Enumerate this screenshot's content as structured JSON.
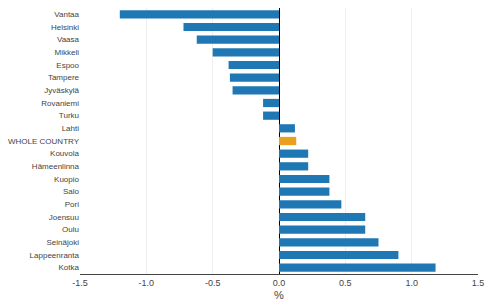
{
  "chart_data": {
    "type": "bar",
    "orientation": "horizontal",
    "categories": [
      "Vantaa",
      "Helsinki",
      "Vaasa",
      "Mikkeli",
      "Espoo",
      "Tampere",
      "Jyväskylä",
      "Rovaniemi",
      "Turku",
      "Lahti",
      "WHOLE COUNTRY",
      "Kouvola",
      "Hämeenlinna",
      "Kuopio",
      "Salo",
      "Pori",
      "Joensuu",
      "Oulu",
      "Seinäjoki",
      "Lappeenranta",
      "Kotka"
    ],
    "values": [
      -1.2,
      -0.72,
      -0.62,
      -0.5,
      -0.38,
      -0.37,
      -0.35,
      -0.12,
      -0.12,
      0.12,
      0.13,
      0.22,
      0.22,
      0.38,
      0.38,
      0.47,
      0.65,
      0.65,
      0.75,
      0.9,
      1.18
    ],
    "colors": [
      "#1f77b4",
      "#1f77b4",
      "#1f77b4",
      "#1f77b4",
      "#1f77b4",
      "#1f77b4",
      "#1f77b4",
      "#1f77b4",
      "#1f77b4",
      "#1f77b4",
      "#e8a020",
      "#1f77b4",
      "#1f77b4",
      "#1f77b4",
      "#1f77b4",
      "#1f77b4",
      "#1f77b4",
      "#1f77b4",
      "#1f77b4",
      "#1f77b4",
      "#1f77b4"
    ],
    "xlabel": "%",
    "xlim": [
      -1.5,
      1.5
    ],
    "xticks": [
      -1.5,
      {
        "value": -1.0,
        "label": "-1.0"
      },
      -0.5,
      {
        "value": 0.0,
        "label": "0.0"
      },
      0.5,
      {
        "value": 1.0,
        "label": "1.0"
      },
      1.5
    ],
    "grid": true
  }
}
